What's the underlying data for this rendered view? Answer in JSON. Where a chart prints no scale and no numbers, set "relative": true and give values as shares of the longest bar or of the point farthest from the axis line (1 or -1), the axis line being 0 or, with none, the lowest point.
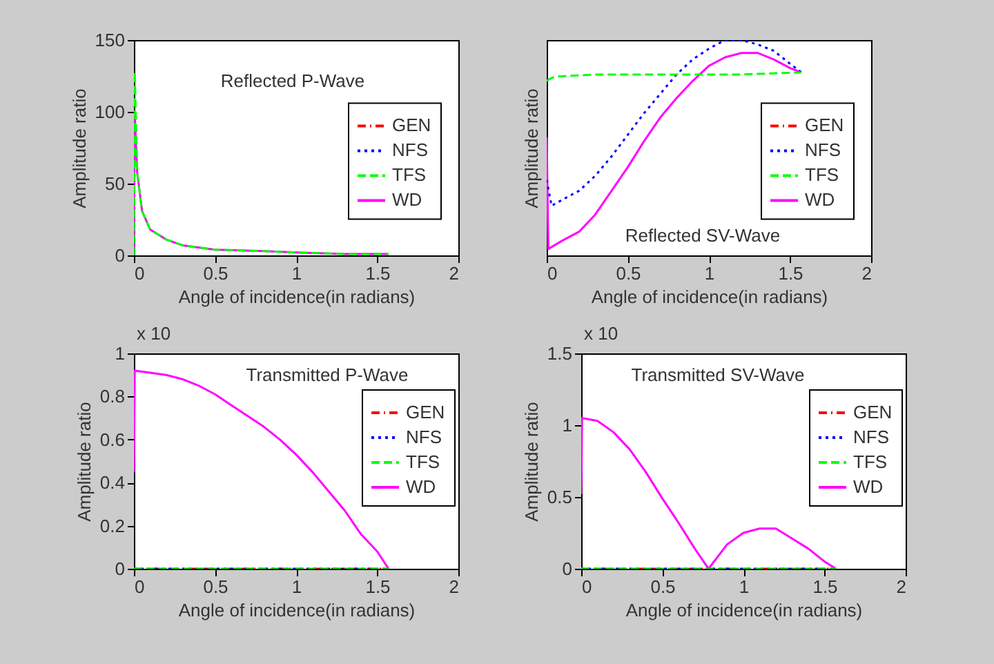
{
  "chart_data": [
    {
      "type": "line",
      "annotations": [
        "Reflected P-Wave"
      ],
      "xlabel": "Angle of incidence(in radians)",
      "ylabel": "Amplitude ratio",
      "xlim": [
        0,
        2
      ],
      "xticks": [
        0,
        0.5,
        1,
        1.5,
        2
      ],
      "ylim": [
        0,
        150
      ],
      "yticks": [
        0,
        50,
        100,
        150
      ],
      "legend": "right",
      "series": [
        {
          "name": "GEN",
          "color": "#ff0000",
          "line_style": "dashdot"
        },
        {
          "name": "NFS",
          "color": "#0000ff",
          "line_style": "dotted"
        },
        {
          "name": "TFS",
          "color": "#00ff00",
          "line_style": "dashed",
          "x": [
            0,
            0.005,
            0.02,
            0.05,
            0.1,
            0.2,
            0.3,
            0.5,
            0.8,
            1.0,
            1.3,
            1.57
          ],
          "values": [
            0,
            128,
            58,
            31,
            18,
            11,
            7,
            4,
            3,
            2,
            1,
            1
          ]
        },
        {
          "name": "WD",
          "color": "#ff00ff",
          "line_style": "solid",
          "x": [
            0,
            0.005,
            0.02,
            0.05,
            0.1,
            0.2,
            0.3,
            0.5,
            0.8,
            1.0,
            1.3,
            1.57
          ],
          "values": [
            0,
            98,
            58,
            31,
            18,
            11,
            7,
            4,
            3,
            2,
            1,
            1
          ]
        }
      ]
    },
    {
      "type": "line",
      "annotations": [
        "Reflected SV-Wave"
      ],
      "xlabel": "Angle of incidence(in radians)",
      "ylabel": "Amplitude ratio",
      "xlim": [
        0,
        2
      ],
      "xticks": [
        0,
        0.5,
        1,
        1.5,
        2
      ],
      "relative": true,
      "legend": "right",
      "series": [
        {
          "name": "GEN",
          "color": "#ff0000",
          "line_style": "dashdot"
        },
        {
          "name": "NFS",
          "color": "#0000ff",
          "line_style": "dotted",
          "x": [
            0,
            0.03,
            0.1,
            0.2,
            0.3,
            0.4,
            0.5,
            0.6,
            0.7,
            0.8,
            0.9,
            1.0,
            1.1,
            1.2,
            1.3,
            1.4,
            1.5,
            1.57
          ],
          "values": [
            0.35,
            0.23,
            0.26,
            0.3,
            0.37,
            0.46,
            0.56,
            0.66,
            0.75,
            0.84,
            0.91,
            0.96,
            1.0,
            1.0,
            0.98,
            0.95,
            0.89,
            0.85
          ]
        },
        {
          "name": "TFS",
          "color": "#00ff00",
          "line_style": "dashed",
          "x": [
            0,
            0.02,
            0.05,
            0.3,
            0.6,
            0.9,
            1.2,
            1.57
          ],
          "values": [
            0.81,
            0.82,
            0.83,
            0.84,
            0.84,
            0.84,
            0.84,
            0.85
          ]
        },
        {
          "name": "WD",
          "color": "#ff00ff",
          "line_style": "solid",
          "x": [
            0,
            0.01,
            0.1,
            0.2,
            0.3,
            0.4,
            0.5,
            0.6,
            0.7,
            0.8,
            0.9,
            1.0,
            1.1,
            1.2,
            1.3,
            1.4,
            1.5,
            1.57
          ],
          "values": [
            0.55,
            0.03,
            0.07,
            0.11,
            0.19,
            0.3,
            0.41,
            0.53,
            0.64,
            0.73,
            0.81,
            0.88,
            0.92,
            0.94,
            0.94,
            0.91,
            0.87,
            0.85
          ]
        }
      ]
    },
    {
      "type": "line",
      "annotations": [
        "Transmitted P-Wave",
        "x 10"
      ],
      "xlabel": "Angle of incidence(in radians)",
      "ylabel": "Amplitude ratio",
      "xlim": [
        0,
        2
      ],
      "xticks": [
        0,
        0.5,
        1,
        1.5,
        2
      ],
      "ylim": [
        0,
        1
      ],
      "yticks": [
        0,
        0.2,
        0.4,
        0.6,
        0.8,
        1
      ],
      "legend": "top right",
      "series": [
        {
          "name": "GEN",
          "color": "#ff0000",
          "line_style": "dashdot",
          "x": [
            0,
            1.57
          ],
          "values": [
            0,
            0
          ]
        },
        {
          "name": "NFS",
          "color": "#0000ff",
          "line_style": "dotted",
          "x": [
            0,
            1.57
          ],
          "values": [
            0,
            0
          ]
        },
        {
          "name": "TFS",
          "color": "#00ff00",
          "line_style": "dashed",
          "x": [
            0,
            1.57
          ],
          "values": [
            0,
            0
          ]
        },
        {
          "name": "WD",
          "color": "#ff00ff",
          "line_style": "solid",
          "x": [
            0,
            0.005,
            0.1,
            0.2,
            0.3,
            0.4,
            0.5,
            0.6,
            0.7,
            0.8,
            0.9,
            1.0,
            1.1,
            1.2,
            1.3,
            1.4,
            1.5,
            1.57
          ],
          "values": [
            0.45,
            0.92,
            0.91,
            0.9,
            0.88,
            0.85,
            0.81,
            0.76,
            0.71,
            0.66,
            0.6,
            0.53,
            0.45,
            0.36,
            0.27,
            0.16,
            0.08,
            0
          ]
        }
      ]
    },
    {
      "type": "line",
      "annotations": [
        "Transmitted SV-Wave",
        "x 10"
      ],
      "xlabel": "Angle of incidence(in radians)",
      "ylabel": "Amplitude ratio",
      "xlim": [
        0,
        2
      ],
      "xticks": [
        0,
        0.5,
        1,
        1.5,
        2
      ],
      "ylim": [
        0,
        1.5
      ],
      "yticks": [
        0,
        0.5,
        1,
        1.5
      ],
      "legend": "top right",
      "series": [
        {
          "name": "GEN",
          "color": "#ff0000",
          "line_style": "dashdot",
          "x": [
            0,
            1.57
          ],
          "values": [
            0,
            0
          ]
        },
        {
          "name": "NFS",
          "color": "#0000ff",
          "line_style": "dotted",
          "x": [
            0,
            1.57
          ],
          "values": [
            0,
            0
          ]
        },
        {
          "name": "TFS",
          "color": "#00ff00",
          "line_style": "dashed",
          "x": [
            0,
            1.57
          ],
          "values": [
            0,
            0
          ]
        },
        {
          "name": "WD",
          "color": "#ff00ff",
          "line_style": "solid",
          "x": [
            0,
            0.005,
            0.1,
            0.2,
            0.3,
            0.4,
            0.5,
            0.6,
            0.7,
            0.785,
            0.9,
            1.0,
            1.1,
            1.2,
            1.3,
            1.4,
            1.5,
            1.57
          ],
          "values": [
            0.52,
            1.05,
            1.03,
            0.95,
            0.83,
            0.67,
            0.49,
            0.32,
            0.14,
            0,
            0.17,
            0.25,
            0.28,
            0.28,
            0.21,
            0.14,
            0.05,
            0
          ]
        }
      ]
    }
  ]
}
